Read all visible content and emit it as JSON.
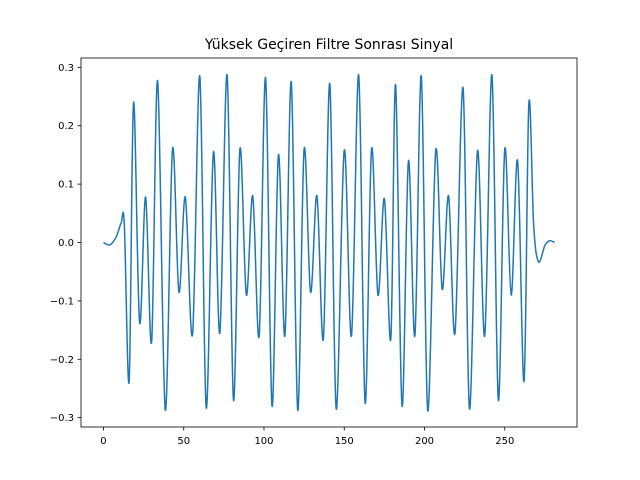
{
  "chart_data": {
    "type": "line",
    "title": "Yüksek Geçiren Filtre Sonrası Sinyal",
    "series": [
      {
        "color": "#1f77b4",
        "x": [
          0,
          4,
          8,
          11,
          13,
          16,
          18.75,
          22.5,
          26.25,
          30,
          33.75,
          38.5,
          43,
          47,
          51,
          55.5,
          60,
          64,
          68.5,
          72.5,
          77,
          81,
          85,
          89,
          93,
          97,
          101,
          105,
          109,
          113,
          117,
          121,
          125,
          129,
          133,
          137,
          141,
          145,
          150,
          154.5,
          159,
          163,
          167,
          171,
          175,
          179,
          182,
          186,
          190,
          194,
          198,
          202,
          207,
          211,
          215,
          219,
          224,
          228,
          233,
          237.5,
          242,
          246,
          250,
          254,
          258,
          262,
          265,
          268,
          271,
          275,
          278,
          281
        ],
        "values": [
          0,
          -0.004,
          0.01,
          0.033,
          0.03,
          -0.238,
          0.24,
          -0.137,
          0.078,
          -0.17,
          0.277,
          -0.287,
          0.16,
          -0.085,
          0.078,
          -0.157,
          0.285,
          -0.283,
          0.155,
          -0.155,
          0.287,
          -0.27,
          0.16,
          -0.09,
          0.08,
          -0.16,
          0.282,
          -0.28,
          0.15,
          -0.16,
          0.275,
          -0.287,
          0.16,
          -0.085,
          0.08,
          -0.165,
          0.272,
          -0.285,
          0.158,
          -0.16,
          0.287,
          -0.275,
          0.16,
          -0.09,
          0.075,
          -0.165,
          0.27,
          -0.28,
          0.14,
          -0.16,
          0.285,
          -0.288,
          0.158,
          -0.08,
          0.08,
          -0.155,
          0.265,
          -0.285,
          0.157,
          -0.16,
          0.287,
          -0.27,
          0.16,
          -0.09,
          0.14,
          -0.238,
          0.238,
          0.03,
          -0.033,
          -0.005,
          0.003,
          0
        ]
      }
    ],
    "xlim": [
      -14,
      295
    ],
    "ylim": [
      -0.316,
      0.316
    ],
    "xticks": [
      0,
      50,
      100,
      150,
      200,
      250
    ],
    "yticks": [
      {
        "value": -0.3,
        "label": "−0.3"
      },
      {
        "value": -0.2,
        "label": "−0.2"
      },
      {
        "value": -0.1,
        "label": "−0.1"
      },
      {
        "value": 0,
        "label": "0.0"
      },
      0.1,
      0.2,
      0.3
    ],
    "grid": false
  }
}
